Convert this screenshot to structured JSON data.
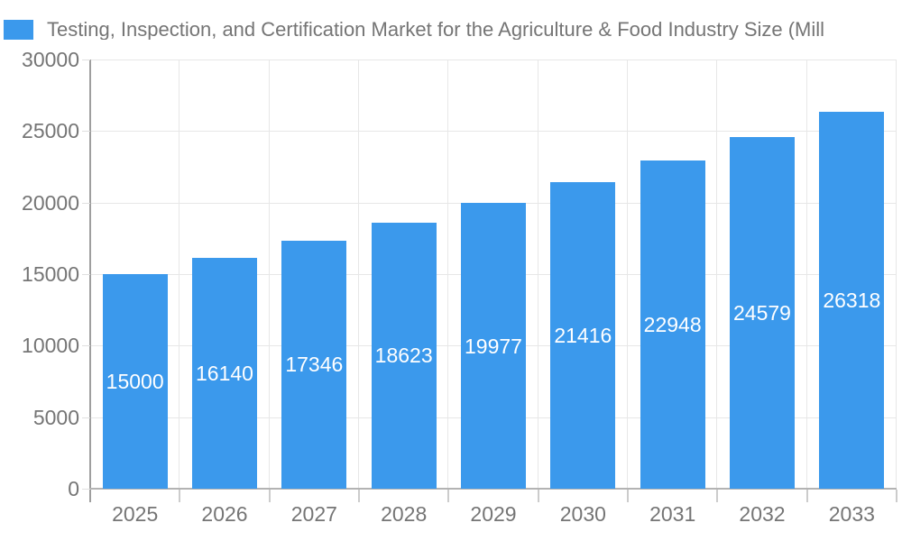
{
  "legend": {
    "swatch_color": "#3b99ec",
    "title": "Testing, Inspection, and Certification Market for the Agriculture & Food Industry Size (Mill"
  },
  "colors": {
    "bar": "#3b99ec",
    "axis_text": "#757575",
    "bar_label_text": "#ffffff",
    "gridline": "#e7e7e7",
    "y_axis_line": "#9e9e9e",
    "x_axis_line": "#b3b3b3",
    "background": "#ffffff"
  },
  "chart_data": {
    "type": "bar",
    "title": "Testing, Inspection, and Certification Market for the Agriculture & Food Industry Size (Mill",
    "categories": [
      "2025",
      "2026",
      "2027",
      "2028",
      "2029",
      "2030",
      "2031",
      "2032",
      "2033"
    ],
    "values": [
      15000,
      16140,
      17346,
      18623,
      19977,
      21416,
      22948,
      24579,
      26318
    ],
    "xlabel": "",
    "ylabel": "",
    "ylim": [
      0,
      30000
    ],
    "yticks": [
      0,
      5000,
      10000,
      15000,
      20000,
      25000,
      30000
    ],
    "grid": true,
    "legend_position": "top-left",
    "bar_label_placement": "inside-middle"
  }
}
